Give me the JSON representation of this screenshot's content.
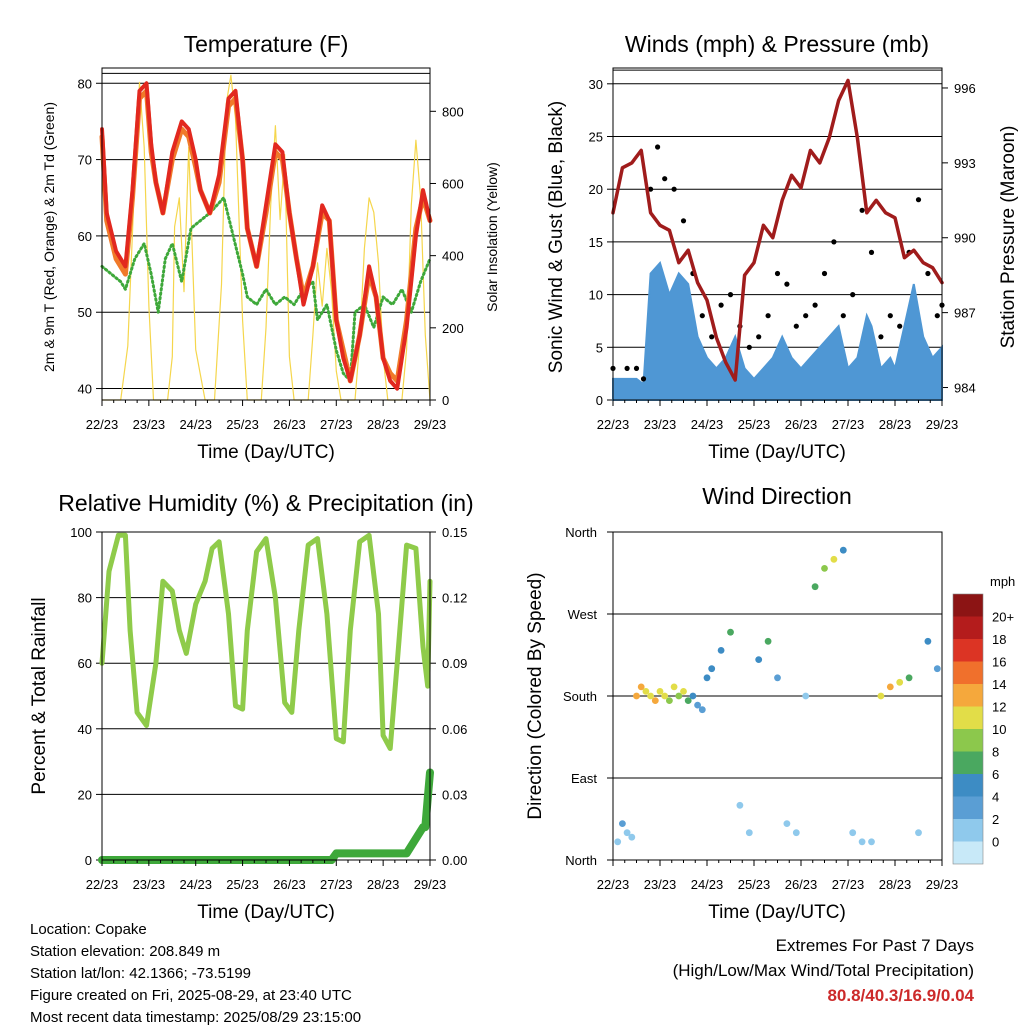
{
  "time_ticks": [
    "22/23",
    "23/23",
    "24/23",
    "25/23",
    "26/23",
    "27/23",
    "28/23",
    "29/23"
  ],
  "colors": {
    "temp2m": "#e2281f",
    "temp9m": "#f07a2a",
    "dewpoint": "#3ea83a",
    "solar": "#f5d64c",
    "wind": "#4f97d4",
    "gust": "#000000",
    "pressure": "#a01c1c",
    "rh": "#8fcb4a",
    "precip": "#3ea83a",
    "grid": "#000000"
  },
  "chart_data": [
    {
      "type": "line",
      "title": "Temperature (F)",
      "xlabel": "Time (Day/UTC)",
      "ylabel": "2m & 9m T (Red, Orange) & 2m Td (Green)",
      "y2label": "Solar Insolation (Yellow)",
      "ylim": [
        38.5,
        82
      ],
      "y2lim": [
        0,
        920
      ],
      "yticks": [
        "40",
        "50",
        "60",
        "70",
        "80"
      ],
      "y2ticks": [
        "0",
        "200",
        "400",
        "600",
        "800"
      ],
      "x_unit": "days since 22/23",
      "series": [
        {
          "name": "2m T",
          "x": [
            0,
            0.1,
            0.3,
            0.5,
            0.65,
            0.8,
            0.95,
            1.05,
            1.15,
            1.3,
            1.5,
            1.7,
            1.85,
            2.0,
            2.1,
            2.3,
            2.5,
            2.7,
            2.85,
            3.0,
            3.1,
            3.3,
            3.5,
            3.7,
            3.85,
            4.0,
            4.15,
            4.3,
            4.5,
            4.7,
            4.85,
            5.0,
            5.15,
            5.3,
            5.5,
            5.7,
            5.85,
            6.0,
            6.15,
            6.3,
            6.5,
            6.7,
            6.85,
            7.0
          ],
          "y": [
            74,
            63,
            58,
            56,
            66,
            79,
            80,
            72,
            67,
            63,
            71,
            75,
            74,
            70,
            66,
            63,
            68,
            78,
            79,
            70,
            61,
            56,
            64,
            72,
            71,
            63,
            57,
            51,
            56,
            64,
            62,
            49,
            44,
            41,
            47,
            56,
            52,
            44,
            41,
            40,
            48,
            60,
            66,
            62
          ]
        },
        {
          "name": "9m T",
          "x": [
            0,
            0.1,
            0.3,
            0.5,
            0.65,
            0.8,
            0.95,
            1.05,
            1.15,
            1.3,
            1.5,
            1.7,
            1.85,
            2.0,
            2.1,
            2.3,
            2.5,
            2.7,
            2.85,
            3.0,
            3.1,
            3.3,
            3.5,
            3.7,
            3.85,
            4.0,
            4.15,
            4.3,
            4.5,
            4.7,
            4.85,
            5.0,
            5.15,
            5.3,
            5.5,
            5.7,
            5.85,
            6.0,
            6.15,
            6.3,
            6.5,
            6.7,
            6.85,
            7.0
          ],
          "y": [
            73,
            62,
            57,
            55,
            65,
            78,
            79,
            71,
            67,
            63,
            70,
            74,
            73,
            69,
            66,
            63,
            67,
            77,
            78,
            70,
            61,
            56,
            63,
            71,
            70,
            63,
            57,
            52,
            56,
            63,
            62,
            49,
            45,
            41,
            47,
            55,
            52,
            44,
            42,
            41,
            49,
            61,
            65,
            62
          ]
        },
        {
          "name": "2m Td",
          "x": [
            0,
            0.2,
            0.4,
            0.5,
            0.7,
            0.9,
            1.05,
            1.2,
            1.35,
            1.5,
            1.7,
            1.9,
            2.1,
            2.3,
            2.45,
            2.6,
            2.8,
            3.0,
            3.1,
            3.3,
            3.5,
            3.7,
            3.9,
            4.1,
            4.3,
            4.5,
            4.6,
            4.8,
            5.0,
            5.15,
            5.3,
            5.4,
            5.6,
            5.8,
            6.0,
            6.2,
            6.4,
            6.6,
            6.8,
            7.0
          ],
          "y": [
            56,
            55,
            54,
            53,
            57,
            59,
            55,
            50,
            57,
            59,
            54,
            61,
            62,
            63,
            64,
            65,
            60,
            55,
            52,
            51,
            53,
            51,
            52,
            51,
            53,
            54,
            49,
            51,
            45,
            42,
            41,
            50,
            51,
            48,
            52,
            51,
            53,
            50,
            54,
            57
          ]
        },
        {
          "name": "Solar",
          "axis": "y2",
          "x": [
            0,
            0.4,
            0.55,
            0.7,
            0.8,
            0.9,
            1.0,
            1.1,
            1.3,
            1.4,
            1.5,
            1.55,
            1.65,
            1.75,
            1.85,
            2.0,
            2.2,
            2.4,
            2.55,
            2.65,
            2.75,
            2.85,
            3.0,
            3.1,
            3.3,
            3.4,
            3.5,
            3.6,
            3.7,
            3.8,
            3.9,
            4.0,
            4.1,
            4.3,
            4.4,
            4.5,
            4.6,
            4.7,
            4.8,
            4.9,
            5.0,
            5.1,
            5.3,
            5.4,
            5.5,
            5.6,
            5.7,
            5.8,
            5.9,
            6.0,
            6.1,
            6.3,
            6.4,
            6.5,
            6.6,
            6.7,
            6.8,
            6.9,
            7.0
          ],
          "y": [
            0,
            0,
            150,
            620,
            880,
            700,
            260,
            0,
            0,
            0,
            120,
            480,
            560,
            300,
            700,
            140,
            0,
            0,
            320,
            820,
            900,
            780,
            220,
            0,
            0,
            0,
            200,
            540,
            760,
            500,
            680,
            120,
            0,
            0,
            0,
            180,
            380,
            260,
            420,
            300,
            80,
            0,
            0,
            0,
            160,
            420,
            560,
            520,
            380,
            120,
            0,
            0,
            0,
            140,
            540,
            720,
            560,
            180,
            0
          ]
        }
      ]
    },
    {
      "type": "scatter",
      "title": "Winds (mph) & Pressure (mb)",
      "xlabel": "Time (Day/UTC)",
      "ylabel": "Sonic Wind & Gust (Blue, Black)",
      "y2label": "Station Pressure (Maroon)",
      "ylim": [
        0,
        31.5
      ],
      "y2lim": [
        983.5,
        996.8
      ],
      "yticks": [
        "0",
        "5",
        "10",
        "15",
        "20",
        "25",
        "30"
      ],
      "y2ticks": [
        "984",
        "987",
        "990",
        "993",
        "996"
      ],
      "x_unit": "days since 22/23",
      "series": [
        {
          "name": "Sonic Wind",
          "x": [
            0,
            0.3,
            0.5,
            0.65,
            0.8,
            1.0,
            1.2,
            1.4,
            1.6,
            1.8,
            2.0,
            2.2,
            2.4,
            2.6,
            2.8,
            3.0,
            3.2,
            3.4,
            3.6,
            3.8,
            4.0,
            4.2,
            4.4,
            4.6,
            4.8,
            5.0,
            5.2,
            5.4,
            5.5,
            5.7,
            5.9,
            6.0,
            6.2,
            6.4,
            6.6,
            6.8,
            7.0
          ],
          "y": [
            2,
            2,
            2,
            1.5,
            12,
            13,
            10,
            12,
            11,
            6,
            4,
            3,
            4,
            6,
            3,
            2,
            3,
            4,
            6,
            4,
            3,
            4,
            5,
            6,
            7,
            3,
            4,
            8,
            7,
            3,
            4,
            3,
            7,
            11,
            6,
            4,
            5
          ]
        },
        {
          "name": "Gust",
          "x": [
            0,
            0.3,
            0.5,
            0.65,
            0.8,
            0.95,
            1.1,
            1.3,
            1.5,
            1.7,
            1.9,
            2.1,
            2.3,
            2.5,
            2.7,
            2.9,
            3.1,
            3.3,
            3.5,
            3.7,
            3.9,
            4.1,
            4.3,
            4.5,
            4.7,
            4.9,
            5.1,
            5.3,
            5.5,
            5.7,
            5.9,
            6.1,
            6.3,
            6.5,
            6.7,
            6.9,
            7.0
          ],
          "y": [
            3,
            3,
            3,
            2,
            20,
            24,
            21,
            20,
            17,
            12,
            8,
            6,
            9,
            10,
            7,
            5,
            6,
            8,
            12,
            11,
            7,
            8,
            9,
            12,
            15,
            8,
            10,
            18,
            14,
            6,
            8,
            7,
            14,
            19,
            12,
            8,
            9
          ]
        },
        {
          "name": "Pressure",
          "axis": "y2",
          "x": [
            0,
            0.2,
            0.4,
            0.6,
            0.8,
            1.0,
            1.2,
            1.4,
            1.6,
            1.8,
            2.0,
            2.2,
            2.4,
            2.6,
            2.8,
            3.0,
            3.2,
            3.4,
            3.6,
            3.8,
            4.0,
            4.2,
            4.4,
            4.6,
            4.8,
            5.0,
            5.2,
            5.4,
            5.6,
            5.8,
            6.0,
            6.2,
            6.4,
            6.6,
            6.8,
            7.0
          ],
          "y": [
            991.0,
            992.8,
            993.0,
            993.5,
            991.0,
            990.5,
            990.3,
            989.0,
            989.5,
            988.2,
            987.5,
            986.0,
            985.0,
            984.3,
            988.5,
            989.0,
            990.5,
            990.0,
            991.5,
            992.5,
            992.0,
            993.5,
            993.0,
            994.0,
            995.5,
            996.3,
            994.0,
            991.0,
            991.5,
            991.0,
            990.8,
            989.2,
            989.5,
            989.0,
            988.8,
            988.2
          ]
        }
      ]
    },
    {
      "type": "line",
      "title": "Relative Humidity (%) & Precipitation (in)",
      "xlabel": "Time (Day/UTC)",
      "ylabel": "Percent & Total Rainfall",
      "ylim": [
        0,
        100
      ],
      "y2lim": [
        0,
        0.15
      ],
      "yticks": [
        "0",
        "20",
        "40",
        "60",
        "80",
        "100"
      ],
      "y2ticks": [
        "0.00",
        "0.03",
        "0.06",
        "0.09",
        "0.12",
        "0.15"
      ],
      "x_unit": "days since 22/23",
      "series": [
        {
          "name": "RH",
          "x": [
            0,
            0.15,
            0.35,
            0.5,
            0.6,
            0.75,
            0.95,
            1.15,
            1.3,
            1.5,
            1.65,
            1.8,
            2.0,
            2.2,
            2.35,
            2.5,
            2.7,
            2.85,
            3.0,
            3.1,
            3.3,
            3.5,
            3.7,
            3.9,
            4.05,
            4.2,
            4.4,
            4.6,
            4.8,
            5.0,
            5.15,
            5.3,
            5.5,
            5.7,
            5.9,
            6.0,
            6.15,
            6.3,
            6.5,
            6.7,
            6.85,
            6.95,
            7.0
          ],
          "y": [
            60,
            88,
            99,
            99,
            70,
            45,
            41,
            60,
            85,
            82,
            70,
            63,
            78,
            85,
            95,
            97,
            75,
            47,
            46,
            70,
            94,
            98,
            80,
            48,
            45,
            70,
            96,
            98,
            75,
            37,
            36,
            70,
            97,
            99,
            75,
            38,
            34,
            60,
            96,
            95,
            65,
            53,
            85
          ]
        },
        {
          "name": "Precipitation",
          "axis": "y2",
          "x": [
            0,
            1,
            2,
            3,
            4,
            4.9,
            5.0,
            5.5,
            6.0,
            6.4,
            6.5,
            6.85,
            6.9,
            6.95,
            7.0
          ],
          "y": [
            0,
            0,
            0,
            0,
            0,
            0,
            0.003,
            0.003,
            0.003,
            0.003,
            0.003,
            0.015,
            0.015,
            0.028,
            0.04
          ]
        }
      ]
    },
    {
      "type": "scatter",
      "title": "Wind Direction",
      "xlabel": "Time (Day/UTC)",
      "ylabel": "Direction (Colored By Speed)",
      "yticks": [
        "North",
        "East",
        "South",
        "West",
        "North"
      ],
      "ylim": [
        0,
        360
      ],
      "x_unit": "days since 22/23",
      "colorbar": {
        "title": "mph",
        "labels": [
          "0",
          "2",
          "4",
          "6",
          "8",
          "10",
          "12",
          "14",
          "16",
          "18",
          "20+"
        ],
        "colors": [
          "#c8e9f8",
          "#8fc9ec",
          "#5a9ed4",
          "#3d8cc4",
          "#4aa860",
          "#8cc84c",
          "#e2dd48",
          "#f5a83c",
          "#f0702c",
          "#dc3424",
          "#b41c1c",
          "#8c1414"
        ]
      },
      "series": [
        {
          "name": "Direction",
          "x": [
            0.1,
            0.2,
            0.3,
            0.4,
            0.5,
            0.6,
            0.7,
            0.8,
            0.9,
            1.0,
            1.1,
            1.2,
            1.3,
            1.4,
            1.5,
            1.6,
            1.7,
            1.8,
            1.9,
            2.0,
            2.1,
            2.3,
            2.5,
            2.7,
            2.9,
            3.1,
            3.3,
            3.5,
            3.7,
            3.9,
            4.1,
            4.3,
            4.5,
            4.7,
            4.9,
            5.1,
            5.3,
            5.5,
            5.7,
            5.9,
            6.1,
            6.3,
            6.5,
            6.7,
            6.9
          ],
          "y": [
            20,
            40,
            30,
            25,
            180,
            190,
            185,
            180,
            175,
            185,
            180,
            175,
            190,
            180,
            185,
            175,
            180,
            170,
            165,
            200,
            210,
            230,
            250,
            60,
            30,
            220,
            240,
            200,
            40,
            30,
            180,
            300,
            320,
            330,
            340,
            30,
            20,
            20,
            180,
            190,
            195,
            200,
            30,
            240,
            210
          ],
          "speed": [
            3,
            4,
            3,
            2,
            14,
            15,
            13,
            12,
            14,
            13,
            12,
            11,
            13,
            10,
            12,
            8,
            6,
            5,
            4,
            6,
            7,
            6,
            8,
            3,
            2,
            6,
            8,
            5,
            2,
            2,
            3,
            9,
            10,
            12,
            7,
            3,
            2,
            3,
            13,
            14,
            12,
            8,
            3,
            6,
            5
          ]
        }
      ]
    }
  ],
  "footer": {
    "location": "Location: Copake",
    "elevation": "Station elevation: 208.849 m",
    "latlon": "Station lat/lon: 42.1366; -73.5199",
    "created": "Figure created on Fri, 2025-08-29, at 23:40 UTC",
    "recent": "Most recent data timestamp: 2025/08/29 23:15:00"
  },
  "extremes": {
    "heading": "Extremes For Past 7 Days",
    "subheading": "(High/Low/Max Wind/Total Precipitation)",
    "values": "80.8/40.3/16.9/0.04"
  }
}
